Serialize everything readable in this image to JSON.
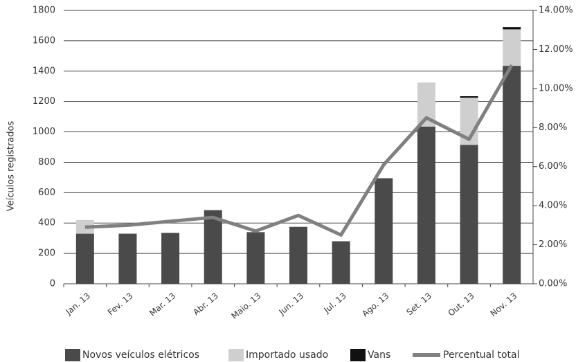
{
  "chart_data": {
    "type": "bar",
    "y_label": "Veículos registrados",
    "categories": [
      "Jan. 13",
      "Fev. 13",
      "Mar. 13",
      "Abr. 13",
      "Maio. 13",
      "Jun. 13",
      "Jul. 13",
      "Ago. 13",
      "Set. 13",
      "Out. 13",
      "Nov. 13"
    ],
    "series": [
      {
        "name": "Novos veículos elétricos",
        "color": "#4a4a4a",
        "values": [
          330,
          330,
          335,
          485,
          340,
          375,
          280,
          695,
          1035,
          915,
          1435
        ]
      },
      {
        "name": "Importado usado",
        "color": "#cfcfcf",
        "values": [
          90,
          0,
          0,
          0,
          0,
          0,
          0,
          0,
          290,
          310,
          240
        ]
      },
      {
        "name": "Vans",
        "color": "#111111",
        "values": [
          0,
          0,
          0,
          0,
          0,
          0,
          0,
          0,
          0,
          10,
          15
        ]
      },
      {
        "name": "Percentual total",
        "color": "#808080",
        "type": "line",
        "axis": "y2",
        "values": [
          2.9,
          3.0,
          3.2,
          3.4,
          2.7,
          3.5,
          2.5,
          6.1,
          8.5,
          7.4,
          11.2
        ]
      }
    ],
    "ylim": [
      0,
      1800
    ],
    "yticks": [
      0,
      200,
      400,
      600,
      800,
      1000,
      1200,
      1400,
      1600,
      1800
    ],
    "y2lim": [
      0,
      14
    ],
    "y2ticks": [
      {
        "value": 0,
        "label": "0.00%"
      },
      {
        "value": 2,
        "label": "2.00%"
      },
      {
        "value": 4,
        "label": "4.00%"
      },
      {
        "value": 6,
        "label": "6.00%"
      },
      {
        "value": 8,
        "label": "8.00%"
      },
      {
        "value": 10,
        "label": "10.00%"
      },
      {
        "value": 12,
        "label": "12.00%"
      },
      {
        "value": 14,
        "label": "14.00%"
      }
    ],
    "grid": true,
    "legend": "bottom"
  }
}
